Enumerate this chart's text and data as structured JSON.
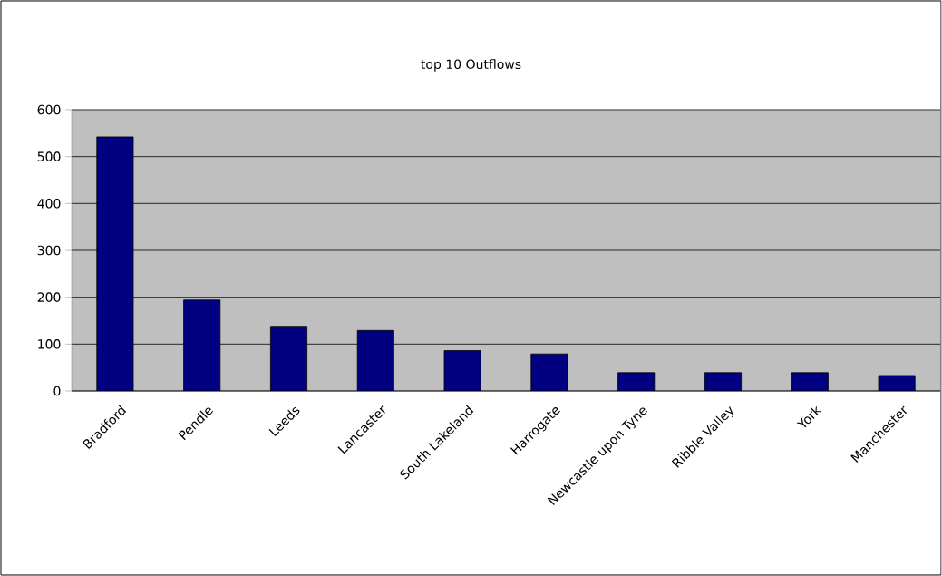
{
  "chart_data": {
    "type": "bar",
    "title": "top 10 Outflows",
    "categories": [
      "Bradford",
      "Pendle",
      "Leeds",
      "Lancaster",
      "South Lakeland",
      "Harrogate",
      "Newcastle upon Tyne",
      "Ribble Valley",
      "York",
      "Manchester"
    ],
    "values": [
      542,
      194,
      138,
      129,
      86,
      79,
      39,
      39,
      39,
      33
    ],
    "color": "#000080",
    "ylim": [
      0,
      600
    ],
    "yticks": [
      0,
      100,
      200,
      300,
      400,
      500,
      600
    ],
    "grid": "y"
  }
}
